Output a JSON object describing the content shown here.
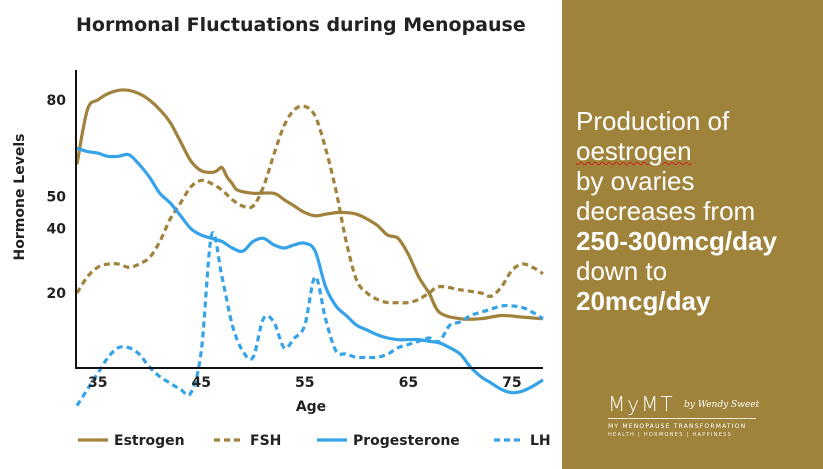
{
  "chart_data": {
    "type": "line",
    "title": "Hormonal Fluctuations during Menopause",
    "xlabel": "Age",
    "ylabel": "Hormone Levels",
    "xlim": [
      33,
      78
    ],
    "x_ticks": [
      35,
      45,
      55,
      65,
      75
    ],
    "y_ticks": [
      20,
      40,
      50,
      80
    ],
    "grid": false,
    "legend_position": "bottom",
    "series": [
      {
        "name": "Estrogen",
        "color": "#a0823c",
        "style": "solid",
        "x": [
          33,
          34,
          35,
          36,
          37,
          38,
          39,
          40,
          41,
          42,
          43,
          44,
          45,
          46,
          46.5,
          47,
          47.5,
          48,
          48.5,
          50,
          52,
          53,
          54,
          55,
          56,
          57,
          58,
          59,
          60,
          61,
          62,
          63,
          64,
          65,
          66,
          67,
          68,
          70,
          72,
          74,
          76,
          78
        ],
        "y": [
          60,
          77,
          80,
          82,
          83,
          83,
          82,
          80,
          77,
          73,
          67,
          61,
          58,
          57.5,
          58,
          59,
          56,
          54,
          52,
          51,
          51,
          49,
          47,
          45,
          44,
          44.5,
          45,
          45,
          44.5,
          43,
          41,
          38,
          37,
          32,
          25,
          20,
          14,
          12,
          12,
          13,
          12.5,
          12
        ]
      },
      {
        "name": "FSH",
        "color": "#a0823c",
        "style": "dashed",
        "x": [
          33,
          34,
          35,
          36,
          37,
          38,
          39,
          40,
          41,
          42,
          43,
          44,
          45,
          46,
          47,
          48,
          49,
          50,
          51,
          52,
          53,
          54,
          55,
          56,
          57,
          58,
          59,
          60,
          61,
          62,
          63,
          64,
          65,
          66,
          67,
          68,
          70,
          72,
          73,
          74,
          75,
          76,
          77,
          78
        ],
        "y": [
          20,
          25,
          28,
          29,
          29,
          28,
          29,
          31,
          36,
          43,
          48,
          53,
          55,
          54,
          52,
          49,
          47,
          47,
          53,
          63,
          72,
          77,
          78,
          75,
          65,
          52,
          36,
          24,
          20,
          18,
          17,
          17,
          17,
          18,
          20,
          22,
          21,
          20,
          19,
          22,
          27,
          29,
          28,
          26
        ]
      },
      {
        "name": "Progesterone",
        "color": "#36a3e8",
        "style": "solid",
        "x": [
          33,
          34,
          35,
          36,
          37,
          38,
          39,
          40,
          41,
          42,
          43,
          44,
          45,
          46,
          47,
          48,
          49,
          50,
          51,
          52,
          53,
          54,
          55,
          56,
          57,
          58,
          59,
          60,
          61,
          62,
          63,
          64,
          65,
          66,
          67,
          68,
          69,
          70,
          71,
          72,
          73,
          74,
          75,
          76,
          77,
          78
        ],
        "y": [
          65,
          64,
          63.5,
          62.5,
          62.5,
          63,
          60,
          56,
          51,
          48,
          44,
          40,
          38,
          37,
          36,
          34,
          33,
          36,
          37,
          35,
          34,
          35,
          35.5,
          33,
          22,
          16,
          13,
          10,
          8.5,
          7,
          6,
          5.5,
          5.5,
          5.5,
          5,
          4.5,
          3,
          1,
          -3,
          -6,
          -8,
          -10,
          -11,
          -10.5,
          -9,
          -7
        ]
      },
      {
        "name": "LH",
        "color": "#36a3e8",
        "style": "dashed",
        "x": [
          33,
          34,
          35,
          36,
          37,
          38,
          39,
          40,
          41,
          42,
          43,
          44,
          45,
          46,
          47,
          48,
          49,
          50,
          51,
          52,
          53,
          54,
          55,
          56,
          57,
          58,
          59,
          60,
          61,
          62,
          63,
          64,
          65,
          66,
          67,
          68,
          69,
          70,
          71,
          72,
          73,
          74,
          75,
          76,
          77,
          78
        ],
        "y": [
          -15,
          -10,
          -5,
          0,
          3,
          3,
          1,
          -3,
          -6,
          -8,
          -10,
          -11,
          2,
          38,
          25,
          10,
          2,
          0,
          12,
          11,
          3,
          6,
          10,
          25,
          12,
          2,
          1,
          0,
          0,
          0,
          1,
          3,
          4,
          5,
          6,
          5,
          10,
          11,
          13,
          14,
          15,
          16,
          16,
          15.5,
          14,
          12
        ]
      }
    ]
  },
  "side_panel": {
    "lines": [
      "Production of",
      "oestrogen",
      "by ovaries",
      "decreases from",
      "250-300mcg/day",
      "down to",
      "20mcg/day"
    ]
  },
  "logo": {
    "main": "MyMT",
    "by": "by Wendy Sweet",
    "subtitle": "MY MENOPAUSE TRANSFORMATION",
    "tagline": "HEALTH | HORMONES | HAPPINESS"
  },
  "colors": {
    "gold": "#a0823c",
    "blue": "#36a3e8",
    "panel": "#a0833b"
  }
}
